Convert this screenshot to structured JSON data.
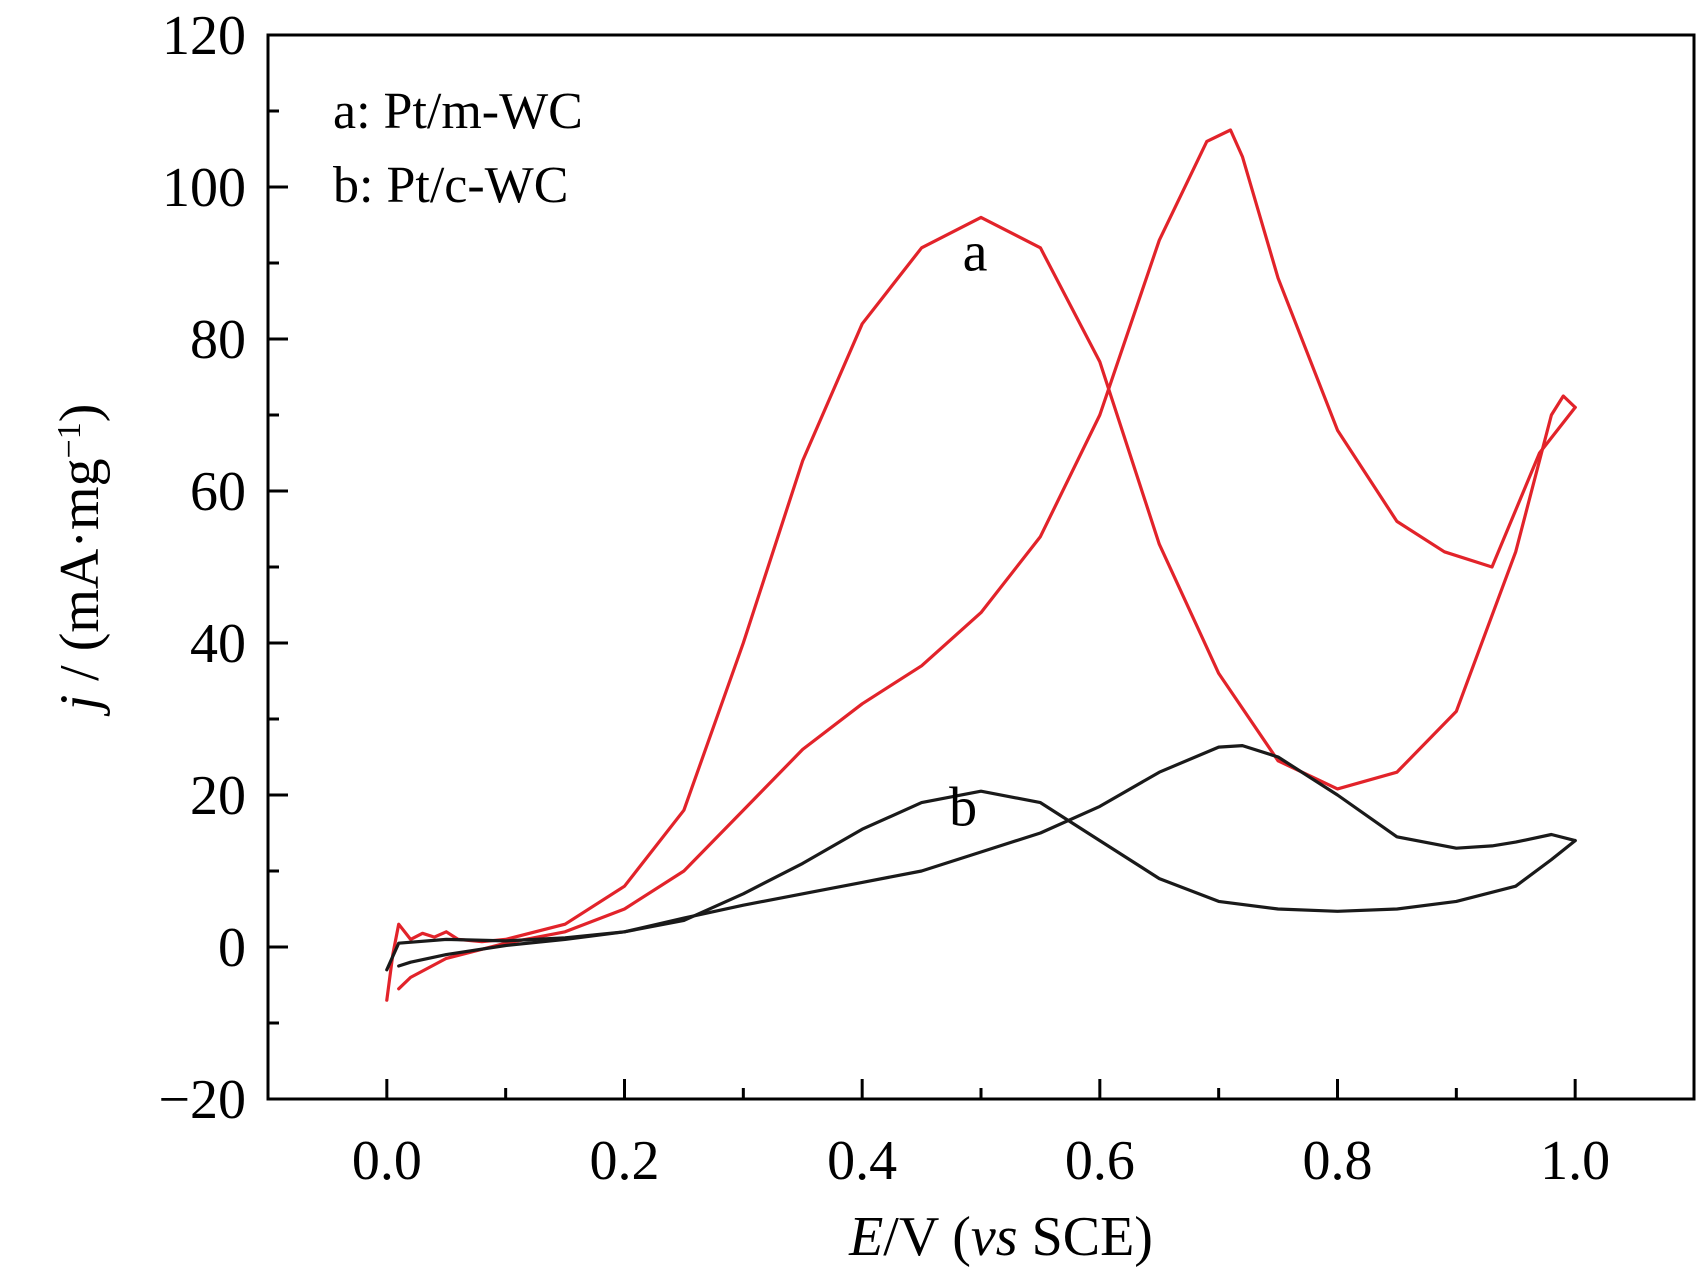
{
  "chart_data": {
    "type": "line",
    "xlabel": {
      "italic": "E",
      "plain1": "/V (",
      "italic2": "vs",
      "plain2": " SCE)"
    },
    "ylabel": {
      "italic": "j",
      "plain": " / (mA·mg",
      "sup": "−1",
      "close": ")"
    },
    "xlim": [
      -0.1,
      1.1
    ],
    "ylim": [
      -20,
      120
    ],
    "xticks": [
      0.0,
      0.2,
      0.4,
      0.6,
      0.8,
      1.0
    ],
    "xtick_labels": [
      "0.0",
      "0.2",
      "0.4",
      "0.6",
      "0.8",
      "1.0"
    ],
    "yticks": [
      -20,
      0,
      20,
      40,
      60,
      80,
      100,
      120
    ],
    "ytick_labels": [
      "−20",
      "0",
      "20",
      "40",
      "60",
      "80",
      "100",
      "120"
    ],
    "grid": false,
    "legend": {
      "placement": "top-left",
      "entries": [
        "a: Pt/m-WC",
        "b: Pt/c-WC"
      ]
    },
    "annotations": [
      {
        "text": "a",
        "x": 0.495,
        "y": 89
      },
      {
        "text": "b",
        "x": 0.485,
        "y": 16
      }
    ],
    "series": [
      {
        "id": "a",
        "color": "#e2232a",
        "forward": [
          [
            0.0,
            -7
          ],
          [
            0.005,
            -1
          ],
          [
            0.01,
            3
          ],
          [
            0.02,
            1
          ],
          [
            0.03,
            1.8
          ],
          [
            0.04,
            1.3
          ],
          [
            0.05,
            2
          ],
          [
            0.06,
            1
          ],
          [
            0.08,
            0.7
          ],
          [
            0.1,
            1
          ],
          [
            0.15,
            3
          ],
          [
            0.2,
            8
          ],
          [
            0.25,
            18
          ],
          [
            0.3,
            40
          ],
          [
            0.35,
            64
          ],
          [
            0.4,
            82
          ],
          [
            0.45,
            92
          ],
          [
            0.5,
            96
          ],
          [
            0.55,
            92
          ],
          [
            0.6,
            77
          ],
          [
            0.65,
            53
          ],
          [
            0.7,
            36
          ],
          [
            0.75,
            24.5
          ],
          [
            0.8,
            20.8
          ],
          [
            0.85,
            23
          ],
          [
            0.9,
            31
          ],
          [
            0.95,
            52
          ],
          [
            0.98,
            70
          ],
          [
            0.99,
            72.5
          ],
          [
            1.0,
            71
          ]
        ],
        "reverse": [
          [
            1.0,
            71
          ],
          [
            0.97,
            65
          ],
          [
            0.93,
            50
          ],
          [
            0.89,
            52
          ],
          [
            0.85,
            56
          ],
          [
            0.8,
            68
          ],
          [
            0.75,
            88
          ],
          [
            0.72,
            104
          ],
          [
            0.71,
            107.5
          ],
          [
            0.69,
            106
          ],
          [
            0.65,
            93
          ],
          [
            0.6,
            70
          ],
          [
            0.55,
            54
          ],
          [
            0.5,
            44
          ],
          [
            0.45,
            37
          ],
          [
            0.4,
            32
          ],
          [
            0.35,
            26
          ],
          [
            0.3,
            18
          ],
          [
            0.25,
            10
          ],
          [
            0.2,
            5
          ],
          [
            0.15,
            2
          ],
          [
            0.1,
            0.5
          ],
          [
            0.05,
            -1.5
          ],
          [
            0.02,
            -4
          ],
          [
            0.01,
            -5.5
          ]
        ]
      },
      {
        "id": "b",
        "color": "#1a1a1a",
        "forward": [
          [
            0.0,
            -3
          ],
          [
            0.01,
            0.5
          ],
          [
            0.05,
            1
          ],
          [
            0.1,
            0.8
          ],
          [
            0.15,
            1.2
          ],
          [
            0.2,
            2
          ],
          [
            0.25,
            3.5
          ],
          [
            0.3,
            7
          ],
          [
            0.35,
            11
          ],
          [
            0.4,
            15.5
          ],
          [
            0.45,
            19
          ],
          [
            0.5,
            20.5
          ],
          [
            0.55,
            19
          ],
          [
            0.6,
            14
          ],
          [
            0.65,
            9
          ],
          [
            0.7,
            6
          ],
          [
            0.75,
            5
          ],
          [
            0.8,
            4.7
          ],
          [
            0.85,
            5
          ],
          [
            0.9,
            6
          ],
          [
            0.95,
            8
          ],
          [
            0.98,
            11.5
          ],
          [
            1.0,
            14
          ]
        ],
        "reverse": [
          [
            1.0,
            14
          ],
          [
            0.98,
            14.8
          ],
          [
            0.95,
            13.8
          ],
          [
            0.93,
            13.3
          ],
          [
            0.9,
            13
          ],
          [
            0.85,
            14.5
          ],
          [
            0.8,
            20
          ],
          [
            0.75,
            25
          ],
          [
            0.72,
            26.5
          ],
          [
            0.7,
            26.3
          ],
          [
            0.65,
            23
          ],
          [
            0.6,
            18.5
          ],
          [
            0.55,
            15
          ],
          [
            0.5,
            12.5
          ],
          [
            0.45,
            10
          ],
          [
            0.4,
            8.5
          ],
          [
            0.35,
            7
          ],
          [
            0.3,
            5.5
          ],
          [
            0.25,
            3.8
          ],
          [
            0.2,
            2
          ],
          [
            0.15,
            1
          ],
          [
            0.1,
            0.2
          ],
          [
            0.05,
            -1
          ],
          [
            0.02,
            -2
          ],
          [
            0.01,
            -2.5
          ]
        ]
      }
    ]
  }
}
